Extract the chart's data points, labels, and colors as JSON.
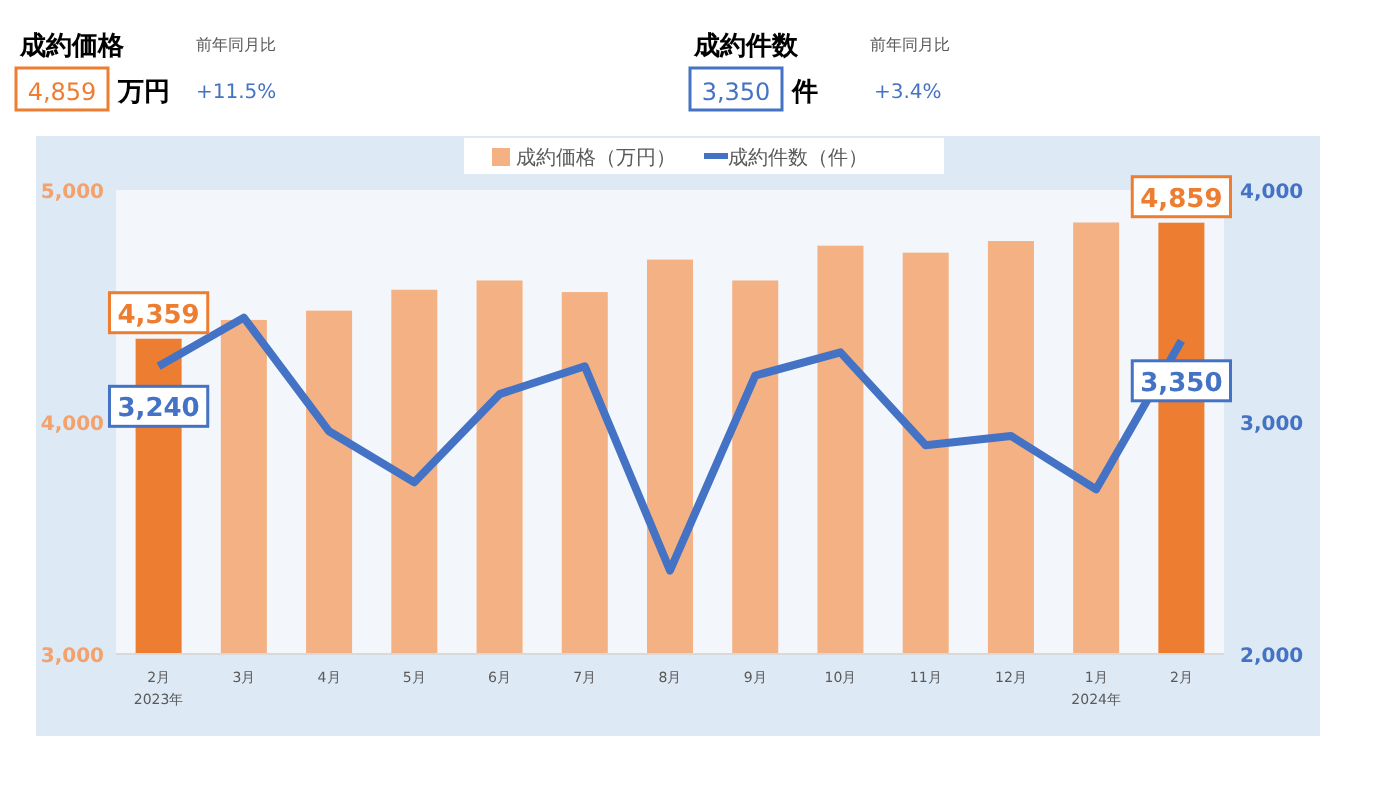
{
  "chart_data": {
    "type": "bar",
    "categories": [
      "2月\n2023年",
      "3月",
      "4月",
      "5月",
      "6月",
      "7月",
      "8月",
      "9月",
      "10月",
      "11月",
      "12月",
      "1月\n2024年",
      "2月"
    ],
    "series": [
      {
        "name": "成約価格（万円）",
        "color": "#f4b183",
        "colors": [
          "#ed7d31",
          "#f4b183",
          "#f4b183",
          "#f4b183",
          "#f4b183",
          "#f4b183",
          "#f4b183",
          "#f4b183",
          "#f4b183",
          "#f4b183",
          "#f4b183",
          "#f4b183",
          "#ed7d31"
        ],
        "values": [
          4359,
          4440,
          4480,
          4570,
          4610,
          4560,
          4700,
          4610,
          4760,
          4730,
          4780,
          4860,
          4859
        ],
        "value_labels": [
          "4,359",
          null,
          null,
          null,
          null,
          null,
          null,
          null,
          null,
          null,
          null,
          null,
          "4,859"
        ]
      },
      {
        "name": "成約件数（件）",
        "type": "line",
        "axis": "y2",
        "color": "#4472c4",
        "values": [
          3240,
          3450,
          2960,
          2740,
          3120,
          3240,
          2360,
          3200,
          3300,
          2900,
          2940,
          2710,
          3350
        ],
        "value_labels": [
          "3,240",
          null,
          null,
          null,
          null,
          null,
          null,
          null,
          null,
          null,
          null,
          null,
          "3,350"
        ]
      }
    ],
    "ylim": [
      3000,
      5000
    ],
    "yticks": [
      {
        "value": 3000,
        "label": "3,000"
      },
      {
        "value": 4000,
        "label": "4,000"
      },
      {
        "value": 5000,
        "label": "5,000"
      }
    ],
    "y2lim": [
      2000,
      4000
    ],
    "y2ticks": [
      {
        "value": 2000,
        "label": "2,000"
      },
      {
        "value": 3000,
        "label": "3,000"
      },
      {
        "value": 4000,
        "label": "4,000"
      }
    ],
    "legend": "top",
    "marker": "none",
    "line_style": "solid",
    "annotations": [
      "成約価格",
      "4,859",
      "万円",
      "前年同月比",
      "+11.5%",
      "成約件数",
      "3,350",
      "件",
      "前年同月比",
      "+3.4%"
    ]
  }
}
